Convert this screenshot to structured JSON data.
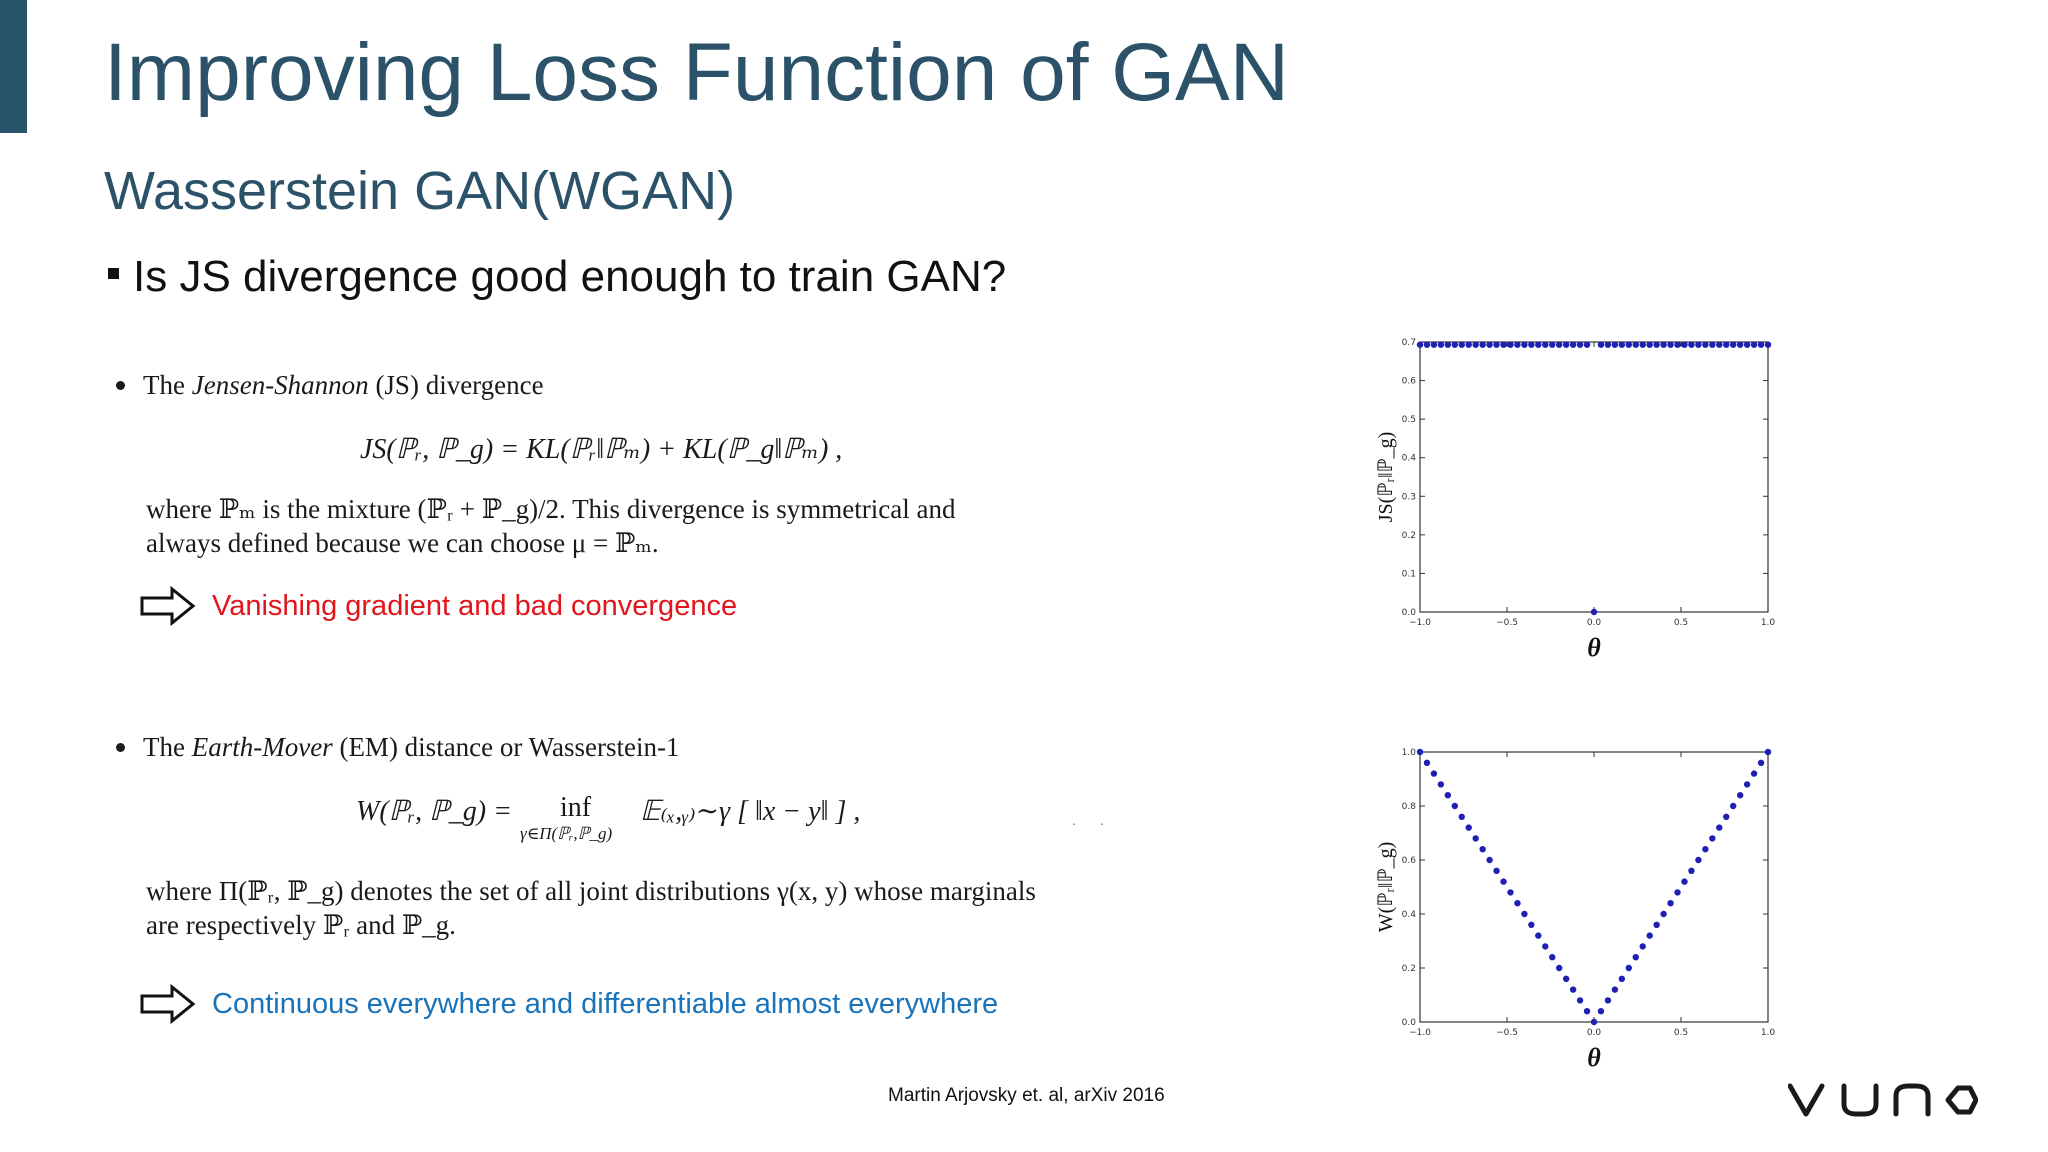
{
  "slide": {
    "title": "Improving Loss Function of GAN",
    "subtitle": "Wasserstein GAN(WGAN)",
    "question": "Is JS divergence good enough to train GAN?",
    "credit": "Martin Arjovsky et. al, arXiv 2016",
    "logo_text": "VUNO",
    "accent_color": "#28536b"
  },
  "js_block": {
    "intro_pre": "The ",
    "intro_em": "Jensen-Shannon",
    "intro_post": " (JS) divergence",
    "formula": "JS(ℙᵣ, ℙ_g) = KL(ℙᵣ‖ℙₘ) + KL(ℙ_g‖ℙₘ) ,",
    "desc_line1": "where ℙₘ is the mixture (ℙᵣ + ℙ_g)/2.  This divergence is symmetrical and",
    "desc_line2": "always defined because we can choose μ = ℙₘ.",
    "conclusion": "Vanishing gradient and bad convergence",
    "conclusion_color": "#e3141b"
  },
  "em_block": {
    "intro_pre": "The ",
    "intro_em": "Earth-Mover",
    "intro_post": " (EM) distance or Wasserstein-1",
    "formula_lhs": "W(ℙᵣ, ℙ_g) =",
    "formula_inf": "inf",
    "formula_sub": "γ∈Π(ℙᵣ,ℙ_g)",
    "formula_rhs": "𝔼₍ₓ,ᵧ₎∼γ [ ‖x − y‖ ] ,",
    "desc_line1": "where Π(ℙᵣ, ℙ_g) denotes the set of all joint distributions γ(x, y) whose marginals",
    "desc_line2": "are respectively ℙᵣ and ℙ_g.",
    "conclusion": "Continuous everywhere and differentiable almost everywhere",
    "conclusion_color": "#1a73b8"
  },
  "chart_data": [
    {
      "type": "scatter",
      "title": "",
      "xlabel": "θ",
      "ylabel": "JS(ℙᵣ‖ℙ_g)",
      "xlim": [
        -1.0,
        1.0
      ],
      "ylim": [
        0.0,
        0.7
      ],
      "x_ticks": [
        "−1.0",
        "−0.5",
        "0.0",
        "0.5",
        "1.0"
      ],
      "y_ticks": [
        "0.0",
        "0.1",
        "0.2",
        "0.3",
        "0.4",
        "0.5",
        "0.6",
        "0.7"
      ],
      "point_color": "#1f1fb4",
      "series": [
        {
          "x": [
            -1.0,
            -0.96,
            -0.92,
            -0.88,
            -0.84,
            -0.8,
            -0.76,
            -0.72,
            -0.68,
            -0.64,
            -0.6,
            -0.56,
            -0.52,
            -0.48,
            -0.44,
            -0.4,
            -0.36,
            -0.32,
            -0.28,
            -0.24,
            -0.2,
            -0.16,
            -0.12,
            -0.08,
            -0.04,
            0.0,
            0.04,
            0.08,
            0.12,
            0.16,
            0.2,
            0.24,
            0.28,
            0.32,
            0.36,
            0.4,
            0.44,
            0.48,
            0.52,
            0.56,
            0.6,
            0.64,
            0.68,
            0.72,
            0.76,
            0.8,
            0.84,
            0.88,
            0.92,
            0.96,
            1.0
          ],
          "y": [
            0.693,
            0.693,
            0.693,
            0.693,
            0.693,
            0.693,
            0.693,
            0.693,
            0.693,
            0.693,
            0.693,
            0.693,
            0.693,
            0.693,
            0.693,
            0.693,
            0.693,
            0.693,
            0.693,
            0.693,
            0.693,
            0.693,
            0.693,
            0.693,
            0.693,
            0.0,
            0.693,
            0.693,
            0.693,
            0.693,
            0.693,
            0.693,
            0.693,
            0.693,
            0.693,
            0.693,
            0.693,
            0.693,
            0.693,
            0.693,
            0.693,
            0.693,
            0.693,
            0.693,
            0.693,
            0.693,
            0.693,
            0.693,
            0.693,
            0.693,
            0.693
          ]
        }
      ]
    },
    {
      "type": "scatter",
      "title": "",
      "xlabel": "θ",
      "ylabel": "W(ℙᵣ‖ℙ_g)",
      "xlim": [
        -1.0,
        1.0
      ],
      "ylim": [
        0.0,
        1.0
      ],
      "x_ticks": [
        "−1.0",
        "−0.5",
        "0.0",
        "0.5",
        "1.0"
      ],
      "y_ticks": [
        "0.0",
        "0.2",
        "0.4",
        "0.6",
        "0.8",
        "1.0"
      ],
      "point_color": "#1f1fb4",
      "series": [
        {
          "x": [
            -1.0,
            -0.96,
            -0.92,
            -0.88,
            -0.84,
            -0.8,
            -0.76,
            -0.72,
            -0.68,
            -0.64,
            -0.6,
            -0.56,
            -0.52,
            -0.48,
            -0.44,
            -0.4,
            -0.36,
            -0.32,
            -0.28,
            -0.24,
            -0.2,
            -0.16,
            -0.12,
            -0.08,
            -0.04,
            0.0,
            0.04,
            0.08,
            0.12,
            0.16,
            0.2,
            0.24,
            0.28,
            0.32,
            0.36,
            0.4,
            0.44,
            0.48,
            0.52,
            0.56,
            0.6,
            0.64,
            0.68,
            0.72,
            0.76,
            0.8,
            0.84,
            0.88,
            0.92,
            0.96,
            1.0
          ],
          "y": [
            1.0,
            0.96,
            0.92,
            0.88,
            0.84,
            0.8,
            0.76,
            0.72,
            0.68,
            0.64,
            0.6,
            0.56,
            0.52,
            0.48,
            0.44,
            0.4,
            0.36,
            0.32,
            0.28,
            0.24,
            0.2,
            0.16,
            0.12,
            0.08,
            0.04,
            0.0,
            0.04,
            0.08,
            0.12,
            0.16,
            0.2,
            0.24,
            0.28,
            0.32,
            0.36,
            0.4,
            0.44,
            0.48,
            0.52,
            0.56,
            0.6,
            0.64,
            0.68,
            0.72,
            0.76,
            0.8,
            0.84,
            0.88,
            0.92,
            0.96,
            1.0
          ]
        }
      ]
    }
  ]
}
